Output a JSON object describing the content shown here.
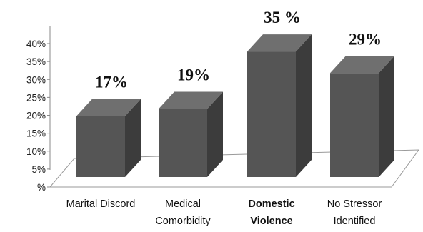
{
  "chart_data": {
    "type": "bar",
    "title": "",
    "xlabel": "",
    "ylabel": "",
    "ylim": [
      0,
      40
    ],
    "yticks": [
      "%",
      "5%",
      "10%",
      "15%",
      "20%",
      "25%",
      "30%",
      "35%",
      "40%"
    ],
    "categories": [
      [
        "Marital Discord"
      ],
      [
        "Medical",
        "Comorbidity"
      ],
      [
        "Domestic",
        "Violence"
      ],
      [
        "No Stressor",
        "Identified"
      ]
    ],
    "bold_categories": [
      2
    ],
    "values": [
      17,
      19,
      35,
      29
    ],
    "data_labels": [
      "17%",
      "19%",
      "35 %",
      "29%"
    ],
    "colors": {
      "front": "#555555",
      "side": "#3c3c3c",
      "top": "#6f6f6f"
    },
    "grid": false,
    "legend": "none"
  }
}
